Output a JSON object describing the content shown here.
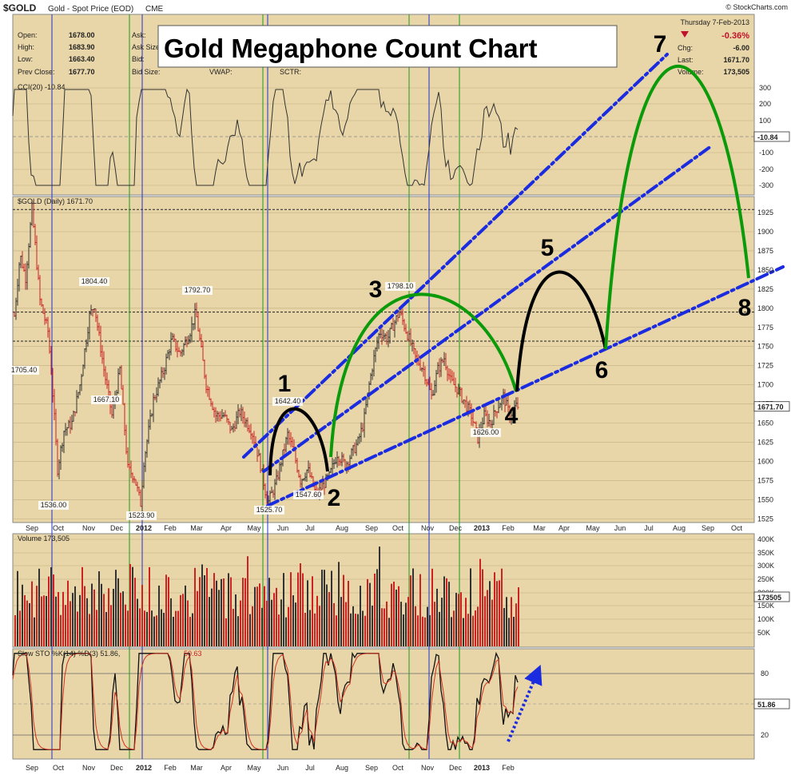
{
  "header": {
    "symbol": "$GOLD",
    "description": "Gold - Spot Price (EOD)",
    "exchange": "CME",
    "credit": "© StockCharts.com",
    "date": "Thursday  7-Feb-2013",
    "quote": {
      "open_label": "Open:",
      "open": "1678.00",
      "high_label": "High:",
      "high": "1683.90",
      "low_label": "Low:",
      "low": "1663.40",
      "prev_label": "Prev Close:",
      "prev": "1677.70",
      "ask_label": "Ask:",
      "asksize_label": "Ask Size:",
      "bid_label": "Bid:",
      "bidsize_label": "Bid Size:",
      "vwap_label": "VWAP:",
      "sctr_label": "SCTR:",
      "pct": "-0.36%",
      "chg_label": "Chg:",
      "chg": "-6.00",
      "last_label": "Last:",
      "last": "1671.70",
      "vol_label": "Volume:",
      "vol": "173,505"
    },
    "down_color": "#c0122a"
  },
  "title_box": "Gold Megaphone Count Chart",
  "colors": {
    "panel_bg": "#e8d6a8",
    "grid": "#bfae82",
    "trend": "#1a2be0",
    "projection_green": "#0a9a0a",
    "projection_black": "#000000",
    "blue_vline": "#2233cc",
    "green_vline": "#1e9a1e",
    "up_bar": "#333333",
    "down_bar": "#cc2222"
  },
  "cci_panel": {
    "label": "CCI(20) -10.84",
    "axis": [
      "300",
      "200",
      "100",
      "-100",
      "-200",
      "-300"
    ],
    "last_tag": "-10.84"
  },
  "price_panel": {
    "label": "$GOLD (Daily) 1671.70",
    "axis": [
      "1925",
      "1900",
      "1875",
      "1850",
      "1825",
      "1800",
      "1775",
      "1750",
      "1725",
      "1700",
      "1675",
      "1650",
      "1625",
      "1600",
      "1575",
      "1550",
      "1525"
    ],
    "last_tag": "1671.70",
    "price_labels": [
      "1705.40",
      "1804.40",
      "1667.10",
      "1792.70",
      "1536.00",
      "1523.90",
      "1642.40",
      "1525.70",
      "1547.60",
      "1798.10",
      "1626.00"
    ],
    "count_labels": [
      "1",
      "2",
      "3",
      "4",
      "5",
      "6",
      "7",
      "8"
    ]
  },
  "volume_panel": {
    "label": "Volume 173,505",
    "axis": [
      "400K",
      "350K",
      "300K",
      "250K",
      "200K",
      "150K",
      "100K",
      "50K"
    ],
    "last_tag": "173505"
  },
  "sto_panel": {
    "label_a": "Slow STO %K(14) %D(3) 51.86,",
    "label_b": "50.63",
    "axis": [
      "80",
      "20"
    ],
    "last_tag": "51.86"
  },
  "x_axis": {
    "labels": [
      "Sep",
      "Oct",
      "Nov",
      "Dec",
      "2012",
      "Feb",
      "Mar",
      "Apr",
      "May",
      "Jun",
      "Jul",
      "Aug",
      "Sep",
      "Oct",
      "Nov",
      "Dec",
      "2013",
      "Feb",
      "Mar",
      "Apr",
      "May",
      "Jun",
      "Jul",
      "Aug",
      "Sep",
      "Oct"
    ]
  },
  "chart_data": {
    "type": "line",
    "title": "Gold Megaphone Count Chart",
    "instrument": "$GOLD Gold - Spot Price (EOD) CME",
    "date": "7-Feb-2013",
    "ylim": [
      1510,
      1940
    ],
    "series": [
      {
        "name": "$GOLD (Daily)",
        "values_approx": [
          [
            "2011-09",
            1900
          ],
          [
            "2011-09",
            1705.4
          ],
          [
            "2011-10",
            1620
          ],
          [
            "2011-10",
            1536.0
          ],
          [
            "2011-11",
            1804.4
          ],
          [
            "2011-11",
            1667.1
          ],
          [
            "2011-12",
            1523.9
          ],
          [
            "2012-02",
            1792.7
          ],
          [
            "2012-03",
            1680
          ],
          [
            "2012-05",
            1525.7
          ],
          [
            "2012-06",
            1642.4
          ],
          [
            "2012-07",
            1547.6
          ],
          [
            "2012-10",
            1798.1
          ],
          [
            "2013-01",
            1626.0
          ],
          [
            "2013-02-07",
            1671.7
          ]
        ]
      }
    ],
    "annotations": [
      {
        "label": "1",
        "price": 1642.4
      },
      {
        "label": "2",
        "price": 1547.6
      },
      {
        "label": "3",
        "price": 1798.1
      },
      {
        "label": "4",
        "price": 1626.0
      },
      {
        "label": "5",
        "note": "projected"
      },
      {
        "label": "6",
        "note": "projected"
      },
      {
        "label": "7",
        "note": "projected"
      },
      {
        "label": "8",
        "note": "projected"
      }
    ],
    "indicators": {
      "CCI(20)": -10.84,
      "Volume": 173505,
      "Slow STO %K(14)": 51.86,
      "Slow STO %D(3)": 50.63
    }
  }
}
